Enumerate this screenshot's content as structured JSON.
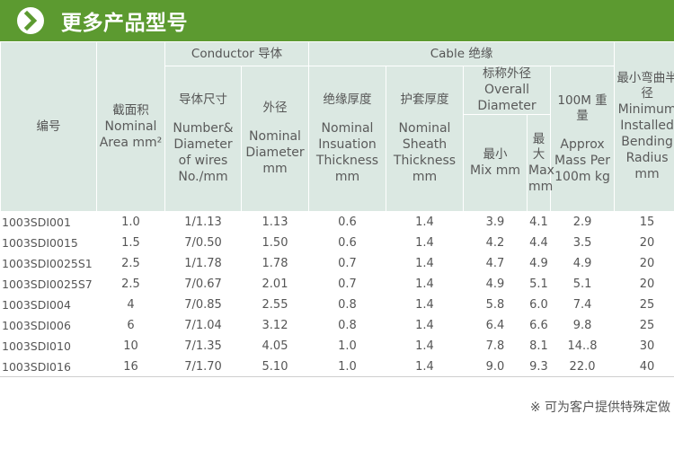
{
  "banner": {
    "title": "更多产品型号",
    "icon": "chevron-right-icon",
    "color": "#5c9a30"
  },
  "table": {
    "header": {
      "code": "编号",
      "area_cn": "截面积",
      "area_en": "Nominal Area mm²",
      "conductor": "Conductor 导体",
      "cable": "Cable 绝缘",
      "wires_cn": "导体尺寸",
      "wires_en": "Number& Diameter of wires No./mm",
      "diameter_cn": "外径",
      "diameter_en": "Nominal Diameter mm",
      "insulation_cn": "绝缘厚度",
      "insulation_en": "Nominal Insuation Thickness mm",
      "sheath_cn": "护套厚度",
      "sheath_en": "Nominal Sheath Thickness mm",
      "overall_cn": "标称外径",
      "overall_en": "Overall Diameter",
      "min_cn": "最小",
      "min_en": "Mix mm",
      "max_cn": "最大",
      "max_en": "Max mm",
      "mass_cn": "100M 重量",
      "mass_en": "Approx Mass Per 100m kg",
      "bend_cn": "最小弯曲半径",
      "bend_en": "Minimum Installed Bending Radius mm"
    },
    "rows": [
      {
        "code": "1003SDI001",
        "area": "1.0",
        "wires": "1/1.13",
        "diameter": "1.13",
        "insulation": "0.6",
        "sheath": "1.4",
        "min": "3.9",
        "max": "4.1",
        "mass": "2.9",
        "bend": "15"
      },
      {
        "code": "1003SDI0015",
        "area": "1.5",
        "wires": "7/0.50",
        "diameter": "1.50",
        "insulation": "0.6",
        "sheath": "1.4",
        "min": "4.2",
        "max": "4.4",
        "mass": "3.5",
        "bend": "20"
      },
      {
        "code": "1003SDI0025S1",
        "area": "2.5",
        "wires": "1/1.78",
        "diameter": "1.78",
        "insulation": "0.7",
        "sheath": "1.4",
        "min": "4.7",
        "max": "4.9",
        "mass": "4.9",
        "bend": "20"
      },
      {
        "code": "1003SDI0025S7",
        "area": "2.5",
        "wires": "7/0.67",
        "diameter": "2.01",
        "insulation": "0.7",
        "sheath": "1.4",
        "min": "4.9",
        "max": "5.1",
        "mass": "5.1",
        "bend": "20"
      },
      {
        "code": "1003SDI004",
        "area": "4",
        "wires": "7/0.85",
        "diameter": "2.55",
        "insulation": "0.8",
        "sheath": "1.4",
        "min": "5.8",
        "max": "6.0",
        "mass": "7.4",
        "bend": "25"
      },
      {
        "code": "1003SDI006",
        "area": "6",
        "wires": "7/1.04",
        "diameter": "3.12",
        "insulation": "0.8",
        "sheath": "1.4",
        "min": "6.4",
        "max": "6.6",
        "mass": "9.8",
        "bend": "25"
      },
      {
        "code": "1003SDI010",
        "area": "10",
        "wires": "7/1.35",
        "diameter": "4.05",
        "insulation": "1.0",
        "sheath": "1.4",
        "min": "7.8",
        "max": "8.1",
        "mass": "14..8",
        "bend": "30"
      },
      {
        "code": "1003SDI016",
        "area": "16",
        "wires": "7/1.70",
        "diameter": "5.10",
        "insulation": "1.0",
        "sheath": "1.4",
        "min": "9.0",
        "max": "9.3",
        "mass": "22.0",
        "bend": "40"
      }
    ]
  },
  "footer": {
    "note": "※ 可为客户提供特殊定做"
  }
}
